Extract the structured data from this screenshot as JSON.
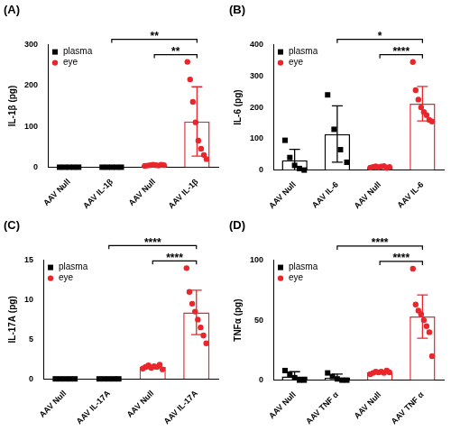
{
  "chart_data": [
    {
      "type": "bar",
      "title": "(A)",
      "y_label": "IL-1β (pg)",
      "categories": [
        "AAV Null",
        "AAV IL-1β",
        "AAV Null",
        "AAV IL-1β"
      ],
      "series": [
        {
          "name": "plasma",
          "color": "#000000",
          "marker": "square",
          "values": [
            0,
            0,
            null,
            null
          ],
          "errors": [
            0,
            0,
            null,
            null
          ],
          "points": [
            [
              0,
              0,
              0,
              0,
              0
            ],
            [
              0,
              0,
              0,
              0,
              0
            ],
            null,
            null
          ]
        },
        {
          "name": "eye",
          "color": "#e8262b",
          "marker": "circle",
          "values": [
            null,
            null,
            5,
            112
          ],
          "errors": [
            null,
            null,
            2,
            85
          ],
          "points": [
            null,
            null,
            [
              3,
              4,
              5,
              6,
              5,
              4,
              6,
              5
            ],
            [
              258,
              215,
              160,
              110,
              65,
              45,
              30,
              20
            ]
          ]
        }
      ],
      "ylim": [
        0,
        300
      ],
      "yticks": [
        0,
        100,
        200,
        300
      ],
      "grid": false,
      "legend": "upper left",
      "brackets": [
        {
          "from": 1,
          "to": 3,
          "label": "**"
        },
        {
          "from": 2,
          "to": 3,
          "label": "**"
        }
      ]
    },
    {
      "type": "bar",
      "title": "(B)",
      "y_label": "IL-6 (pg)",
      "categories": [
        "AAV Null",
        "AAV IL-6",
        "AAV Null",
        "AAV IL-6"
      ],
      "series": [
        {
          "name": "plasma",
          "color": "#000000",
          "marker": "square",
          "values": [
            31,
            115,
            null,
            null
          ],
          "errors": [
            35,
            90,
            null,
            null
          ],
          "points": [
            [
              95,
              40,
              15,
              5,
              0
            ],
            [
              240,
              130,
              65,
              25
            ],
            null,
            null
          ]
        },
        {
          "name": "eye",
          "color": "#e8262b",
          "marker": "circle",
          "values": [
            null,
            null,
            10,
            212
          ],
          "errors": [
            null,
            null,
            3,
            55
          ],
          "points": [
            null,
            null,
            [
              8,
              10,
              12,
              9,
              11,
              13,
              7,
              10
            ],
            [
              345,
              255,
              225,
              200,
              185,
              175,
              160,
              155
            ]
          ]
        }
      ],
      "ylim": [
        0,
        400
      ],
      "yticks": [
        0,
        100,
        200,
        300,
        400
      ],
      "grid": false,
      "legend": "upper left",
      "brackets": [
        {
          "from": 1,
          "to": 3,
          "label": "*"
        },
        {
          "from": 2,
          "to": 3,
          "label": "****"
        }
      ]
    },
    {
      "type": "bar",
      "title": "(C)",
      "y_label": "IL-17A (pg)",
      "categories": [
        "AAV Null",
        "AAV IL-17A",
        "AAV Null",
        "AAV IL-17A"
      ],
      "series": [
        {
          "name": "plasma",
          "color": "#000000",
          "marker": "square",
          "values": [
            0,
            0,
            null,
            null
          ],
          "errors": [
            0,
            0,
            null,
            null
          ],
          "points": [
            [
              0,
              0,
              0,
              0,
              0
            ],
            [
              0,
              0,
              0,
              0,
              0
            ],
            null,
            null
          ]
        },
        {
          "name": "eye",
          "color": "#e8262b",
          "marker": "circle",
          "values": [
            null,
            null,
            1.5,
            8.4
          ],
          "errors": [
            null,
            null,
            0.2,
            2.8
          ],
          "points": [
            null,
            null,
            [
              1.3,
              1.5,
              1.7,
              1.4,
              1.6,
              1.5,
              1.8,
              1.2
            ],
            [
              14,
              11,
              9.5,
              8.5,
              7.5,
              6.5,
              5.5,
              4.5
            ]
          ]
        }
      ],
      "ylim": [
        0,
        15
      ],
      "yticks": [
        0,
        5,
        10,
        15
      ],
      "grid": false,
      "legend": "upper left",
      "brackets": [
        {
          "from": 1,
          "to": 3,
          "label": "****"
        },
        {
          "from": 2,
          "to": 3,
          "label": "****"
        }
      ]
    },
    {
      "type": "bar",
      "title": "(D)",
      "y_label": "TNFα (pg)",
      "categories": [
        "AAV Null",
        "AAV TNF α",
        "AAV Null",
        "AAV TNF α"
      ],
      "series": [
        {
          "name": "plasma",
          "color": "#000000",
          "marker": "square",
          "values": [
            3,
            2,
            null,
            null
          ],
          "errors": [
            4,
            3,
            null,
            null
          ],
          "points": [
            [
              8,
              5,
              2,
              0,
              0
            ],
            [
              6,
              3,
              1,
              0,
              0
            ],
            null,
            null
          ]
        },
        {
          "name": "eye",
          "color": "#e8262b",
          "marker": "circle",
          "values": [
            null,
            null,
            6.5,
            53
          ],
          "errors": [
            null,
            null,
            1,
            18
          ],
          "points": [
            null,
            null,
            [
              5,
              6,
              7,
              6.5,
              7,
              6,
              8,
              6.5
            ],
            [
              93,
              63,
              58,
              55,
              50,
              45,
              40,
              20
            ]
          ]
        }
      ],
      "ylim": [
        0,
        100
      ],
      "yticks": [
        0,
        50,
        100
      ],
      "grid": false,
      "legend": "upper left",
      "brackets": [
        {
          "from": 1,
          "to": 3,
          "label": "****"
        },
        {
          "from": 2,
          "to": 3,
          "label": "****"
        }
      ]
    }
  ]
}
